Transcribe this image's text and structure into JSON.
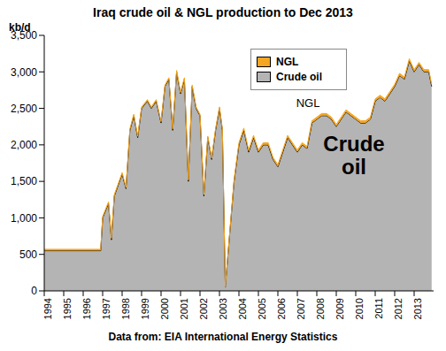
{
  "chart_data": {
    "type": "area",
    "title": "Iraq crude oil & NGL production to Dec 2013",
    "y_label": "kb/d",
    "footer": "Data from: EIA International Energy Statistics",
    "stacked": true,
    "grid": false,
    "legend": "top",
    "annotations": [
      {
        "text": "NGL"
      },
      {
        "text": "Crude oil"
      }
    ],
    "x": [
      1994.0,
      1995.0,
      1996.0,
      1996.9,
      1997.0,
      1997.3,
      1997.45,
      1997.6,
      1998.0,
      1998.2,
      1998.4,
      1998.6,
      1998.8,
      1999.0,
      1999.3,
      1999.5,
      1999.75,
      2000.0,
      2000.2,
      2000.4,
      2000.6,
      2000.8,
      2001.0,
      2001.2,
      2001.4,
      2001.6,
      2001.8,
      2002.0,
      2002.2,
      2002.4,
      2002.6,
      2002.8,
      2003.0,
      2003.15,
      2003.3,
      2003.5,
      2003.75,
      2004.0,
      2004.25,
      2004.5,
      2004.75,
      2005.0,
      2005.25,
      2005.5,
      2005.75,
      2006.0,
      2006.25,
      2006.5,
      2006.75,
      2007.0,
      2007.25,
      2007.5,
      2007.75,
      2008.0,
      2008.25,
      2008.5,
      2008.75,
      2009.0,
      2009.25,
      2009.5,
      2009.75,
      2010.0,
      2010.25,
      2010.5,
      2010.75,
      2011.0,
      2011.25,
      2011.5,
      2011.75,
      2012.0,
      2012.25,
      2012.5,
      2012.75,
      2013.0,
      2013.25,
      2013.5,
      2013.75,
      2013.9
    ],
    "series": [
      {
        "name": "NGL",
        "color": "#f5a623",
        "values": [
          20,
          20,
          20,
          20,
          20,
          20,
          20,
          20,
          20,
          20,
          20,
          20,
          20,
          20,
          20,
          20,
          20,
          20,
          20,
          20,
          20,
          20,
          20,
          20,
          20,
          20,
          20,
          20,
          20,
          20,
          20,
          20,
          20,
          20,
          5,
          10,
          20,
          30,
          30,
          30,
          30,
          30,
          30,
          30,
          30,
          30,
          30,
          30,
          30,
          30,
          30,
          30,
          30,
          30,
          30,
          30,
          30,
          30,
          30,
          30,
          30,
          30,
          30,
          30,
          30,
          30,
          30,
          30,
          30,
          30,
          30,
          30,
          30,
          30,
          30,
          30,
          30,
          30
        ]
      },
      {
        "name": "Crude oil",
        "color": "#b4b4b4",
        "values": [
          550,
          550,
          550,
          550,
          1000,
          1200,
          700,
          1300,
          1600,
          1400,
          2200,
          2400,
          2100,
          2500,
          2600,
          2500,
          2600,
          2300,
          2800,
          2900,
          2200,
          3000,
          2700,
          2900,
          1500,
          2800,
          2500,
          2400,
          1300,
          2100,
          1800,
          2200,
          2500,
          2200,
          50,
          700,
          1500,
          2000,
          2200,
          1900,
          2100,
          1900,
          2000,
          2000,
          1800,
          1700,
          1900,
          2100,
          2000,
          1900,
          2000,
          1950,
          2300,
          2350,
          2400,
          2400,
          2350,
          2250,
          2350,
          2450,
          2400,
          2350,
          2300,
          2300,
          2350,
          2600,
          2650,
          2600,
          2700,
          2800,
          2950,
          2900,
          3150,
          3000,
          3100,
          3000,
          3000,
          2800
        ]
      }
    ],
    "xlim": [
      1994,
      2014
    ],
    "xticks": [
      1994,
      1995,
      1996,
      1997,
      1998,
      1999,
      2000,
      2001,
      2002,
      2003,
      2004,
      2005,
      2006,
      2007,
      2008,
      2009,
      2010,
      2011,
      2012,
      2013
    ],
    "ylim": [
      0,
      3500
    ],
    "yticks": [
      0,
      500,
      {
        "value": 1000,
        "label": "1,000"
      },
      {
        "value": 1500,
        "label": "1,500"
      },
      {
        "value": 2000,
        "label": "2,000"
      },
      {
        "value": 2500,
        "label": "2,500"
      },
      {
        "value": 3000,
        "label": "3,000"
      },
      {
        "value": 3500,
        "label": "3,500"
      }
    ]
  }
}
